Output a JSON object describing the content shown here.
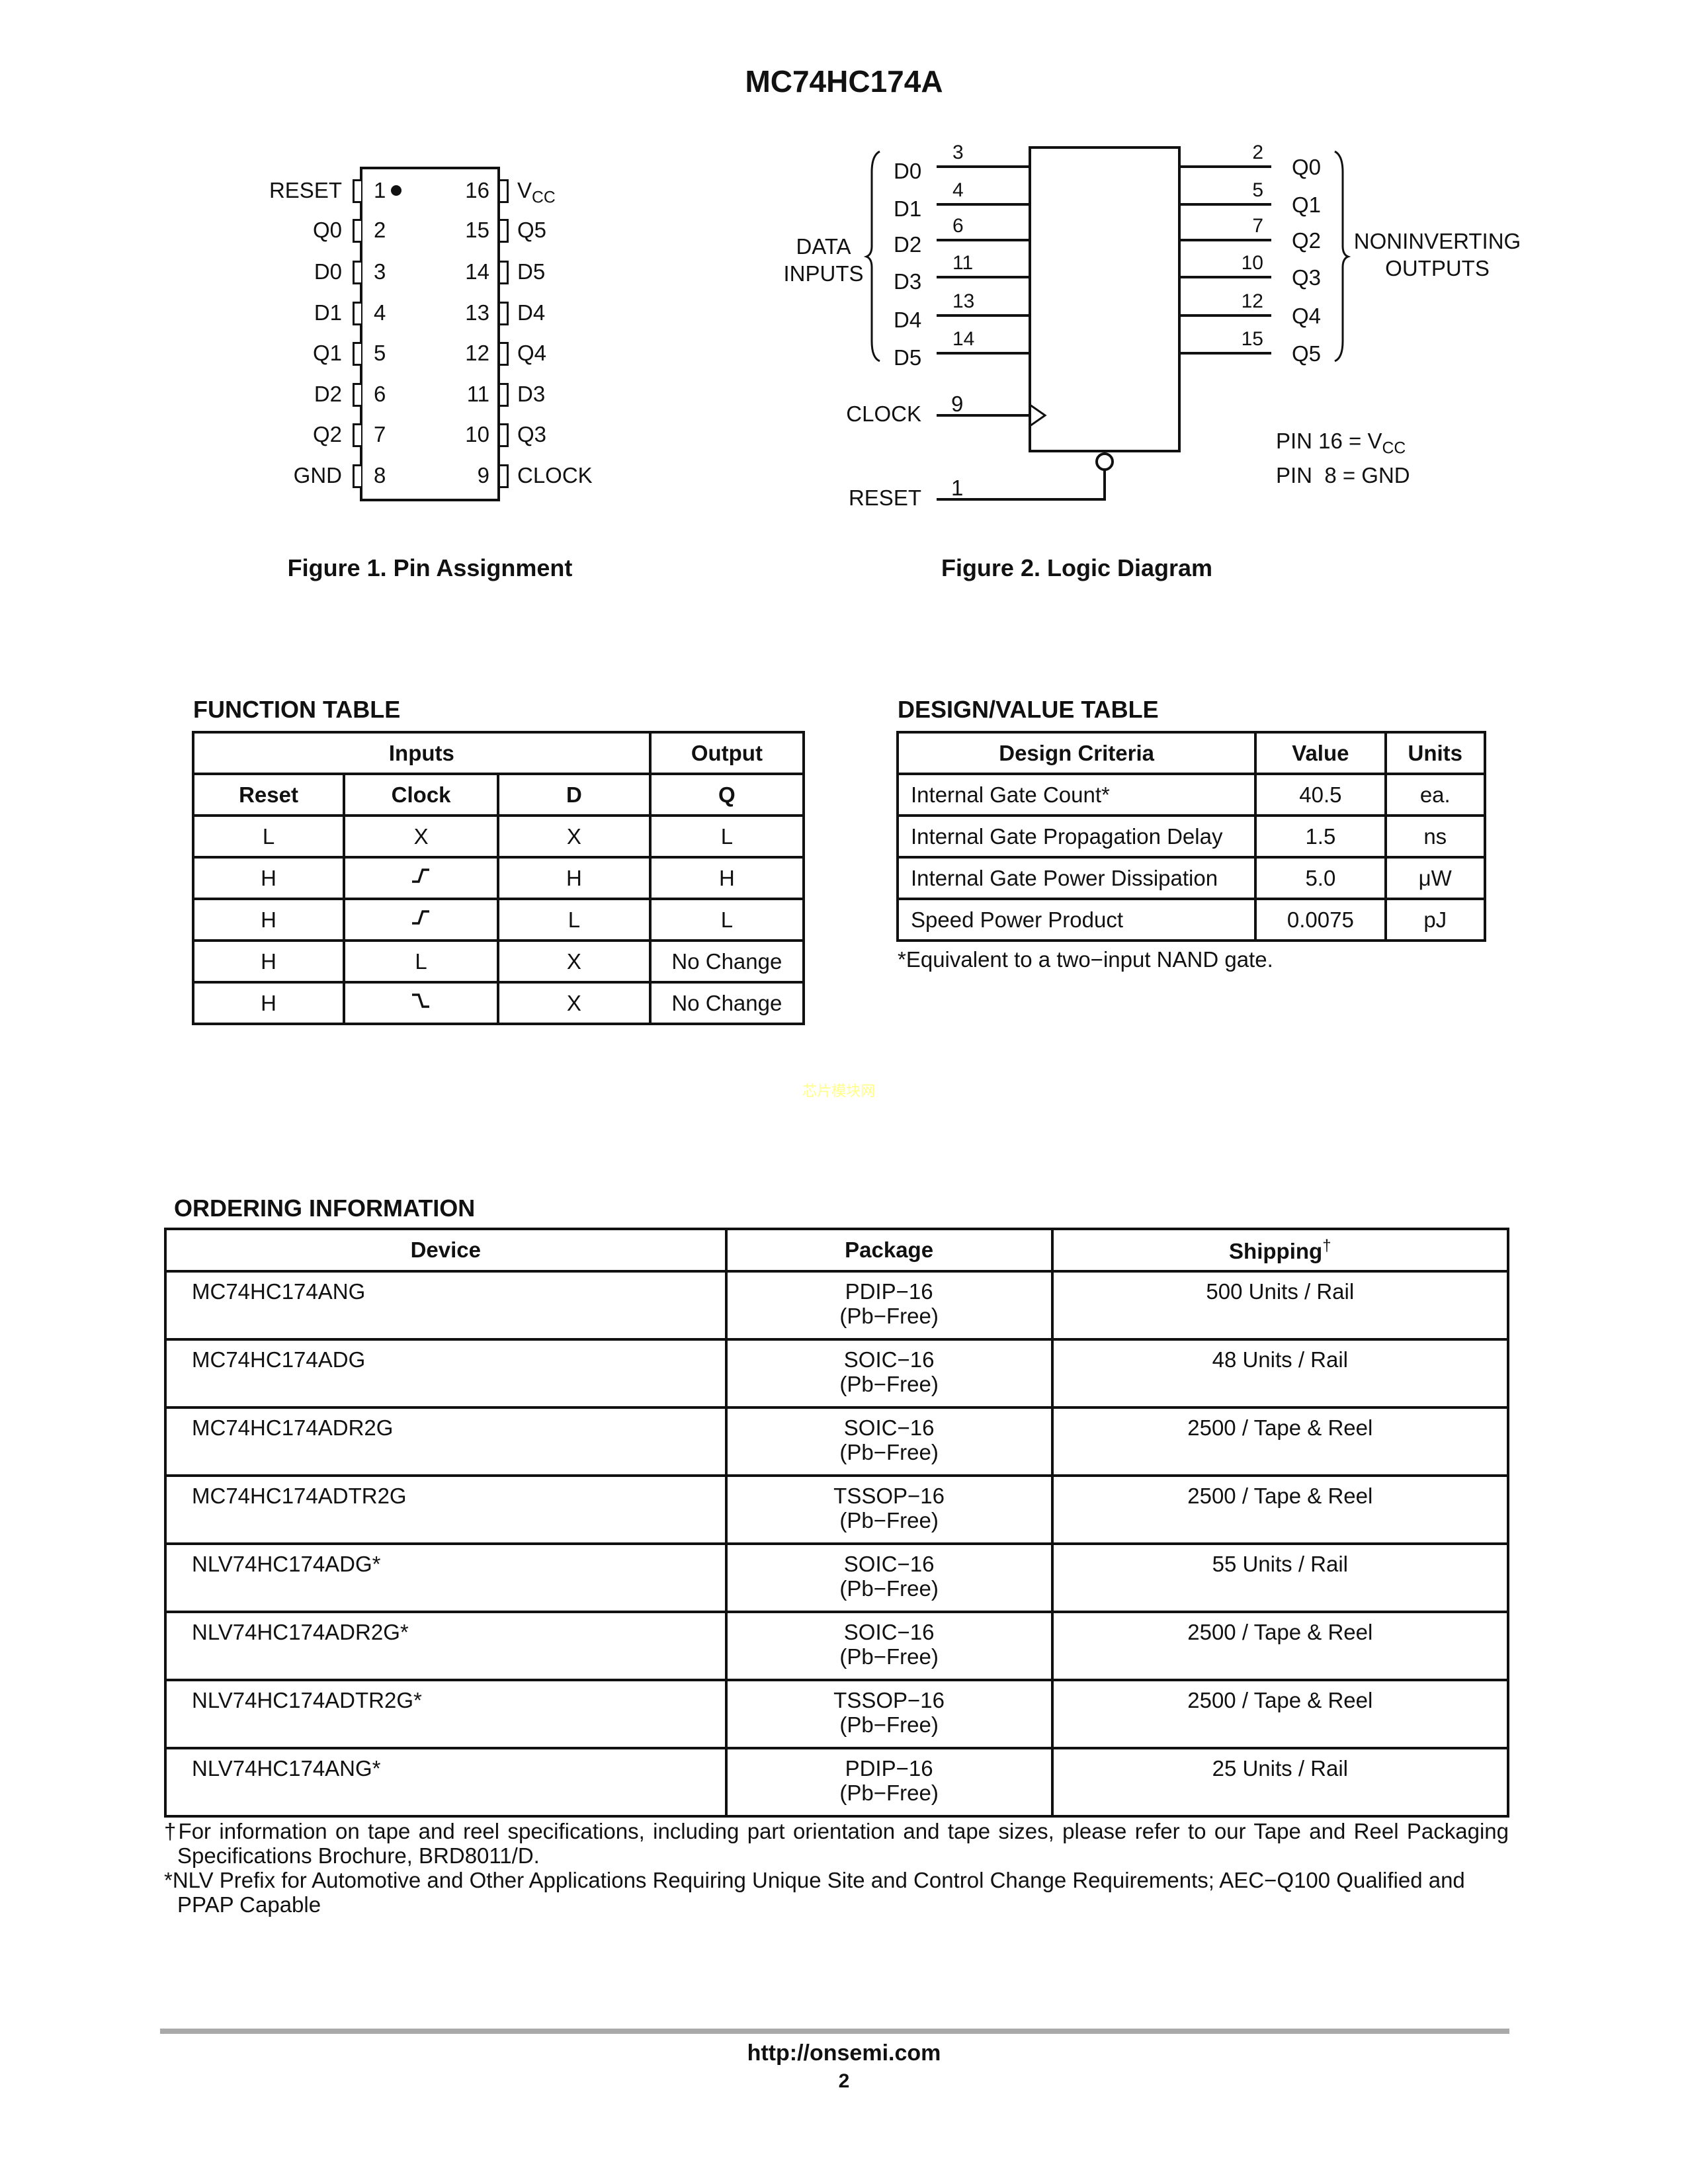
{
  "header": {
    "title": "MC74HC174A"
  },
  "pin_assignment": {
    "caption": "Figure 1. Pin Assignment",
    "left_pins": [
      {
        "num": "1",
        "label": "RESET"
      },
      {
        "num": "2",
        "label": "Q0"
      },
      {
        "num": "3",
        "label": "D0"
      },
      {
        "num": "4",
        "label": "D1"
      },
      {
        "num": "5",
        "label": "Q1"
      },
      {
        "num": "6",
        "label": "D2"
      },
      {
        "num": "7",
        "label": "Q2"
      },
      {
        "num": "8",
        "label": "GND"
      }
    ],
    "right_pins": [
      {
        "num": "16",
        "label": "V",
        "sub": "CC"
      },
      {
        "num": "15",
        "label": "Q5"
      },
      {
        "num": "14",
        "label": "D5"
      },
      {
        "num": "13",
        "label": "D4"
      },
      {
        "num": "12",
        "label": "Q4"
      },
      {
        "num": "11",
        "label": "D3"
      },
      {
        "num": "10",
        "label": "Q3"
      },
      {
        "num": "9",
        "label": "CLOCK"
      }
    ]
  },
  "logic_diagram": {
    "caption": "Figure 2. Logic Diagram",
    "inputs": [
      {
        "label": "D0",
        "pin": "3"
      },
      {
        "label": "D1",
        "pin": "4"
      },
      {
        "label": "D2",
        "pin": "6"
      },
      {
        "label": "D3",
        "pin": "11"
      },
      {
        "label": "D4",
        "pin": "13"
      },
      {
        "label": "D5",
        "pin": "14"
      }
    ],
    "outputs": [
      {
        "label": "Q0",
        "pin": "2"
      },
      {
        "label": "Q1",
        "pin": "5"
      },
      {
        "label": "Q2",
        "pin": "7"
      },
      {
        "label": "Q3",
        "pin": "10"
      },
      {
        "label": "Q4",
        "pin": "12"
      },
      {
        "label": "Q5",
        "pin": "15"
      }
    ],
    "inputs_group": [
      "DATA",
      "INPUTS"
    ],
    "outputs_group": [
      "NONINVERTING",
      "OUTPUTS"
    ],
    "clock": {
      "label": "CLOCK",
      "pin": "9"
    },
    "reset": {
      "label": "RESET",
      "pin": "1"
    },
    "power_note": {
      "vcc_prefix": "PIN 16 = V",
      "vcc_sub": "CC",
      "gnd": "PIN  8 = GND"
    }
  },
  "function_table": {
    "title": "FUNCTION TABLE",
    "group_headers": [
      "Inputs",
      "Output"
    ],
    "headers": [
      "Reset",
      "Clock",
      "D",
      "Q"
    ],
    "rows": [
      [
        "L",
        "X",
        "X",
        "L"
      ],
      [
        "H",
        "rising-edge-icon",
        "H",
        "H"
      ],
      [
        "H",
        "rising-edge-icon",
        "L",
        "L"
      ],
      [
        "H",
        "L",
        "X",
        "No Change"
      ],
      [
        "H",
        "falling-edge-icon",
        "X",
        "No Change"
      ]
    ]
  },
  "design_table": {
    "title": "DESIGN/VALUE TABLE",
    "headers": [
      "Design Criteria",
      "Value",
      "Units"
    ],
    "rows": [
      [
        "Internal Gate Count*",
        "40.5",
        "ea."
      ],
      [
        "Internal Gate Propagation Delay",
        "1.5",
        "ns"
      ],
      [
        "Internal Gate Power Dissipation",
        "5.0",
        "μW"
      ],
      [
        "Speed Power Product",
        "0.0075",
        "pJ"
      ]
    ],
    "footnote": "*Equivalent to a two−input NAND gate."
  },
  "watermark": "芯片模块网",
  "ordering": {
    "title": "ORDERING INFORMATION",
    "headers": [
      "Device",
      "Package",
      "Shipping"
    ],
    "shipping_mark": "†",
    "rows": [
      [
        "MC74HC174ANG",
        "PDIP−16",
        "(Pb−Free)",
        "500 Units / Rail"
      ],
      [
        "MC74HC174ADG",
        "SOIC−16",
        "(Pb−Free)",
        "48 Units / Rail"
      ],
      [
        "MC74HC174ADR2G",
        "SOIC−16",
        "(Pb−Free)",
        "2500 / Tape & Reel"
      ],
      [
        "MC74HC174ADTR2G",
        "TSSOP−16",
        "(Pb−Free)",
        "2500 / Tape & Reel"
      ],
      [
        "NLV74HC174ADG*",
        "SOIC−16",
        "(Pb−Free)",
        "55 Units / Rail"
      ],
      [
        "NLV74HC174ADR2G*",
        "SOIC−16",
        "(Pb−Free)",
        "2500 / Tape & Reel"
      ],
      [
        "NLV74HC174ADTR2G*",
        "TSSOP−16",
        "(Pb−Free)",
        "2500 / Tape & Reel"
      ],
      [
        "NLV74HC174ANG*",
        "PDIP−16",
        "(Pb−Free)",
        "25 Units / Rail"
      ]
    ],
    "footnotes": [
      "†For information on tape and reel specifications, including part orientation and tape sizes, please refer to our Tape and Reel Packaging Specifications Brochure, BRD8011/D.",
      "*NLV Prefix for Automotive and Other Applications Requiring Unique Site and Control Change Requirements; AEC−Q100 Qualified and PPAP Capable"
    ]
  },
  "footer": {
    "url": "http://onsemi.com",
    "page": "2"
  }
}
